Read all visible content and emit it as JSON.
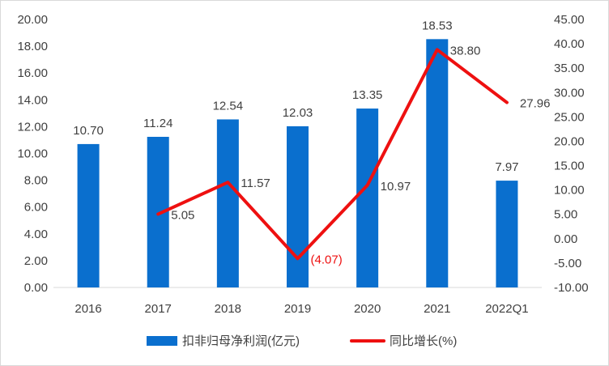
{
  "chart_data": {
    "type": "bar",
    "categories": [
      "2016",
      "2017",
      "2018",
      "2019",
      "2020",
      "2021",
      "2022Q1"
    ],
    "series": [
      {
        "name": "扣非归母净利润(亿元)",
        "type": "bar",
        "axis": "left",
        "color": "#0a6fce",
        "values": [
          10.7,
          11.24,
          12.54,
          12.03,
          13.35,
          18.53,
          7.97
        ],
        "labels": [
          "10.70",
          "11.24",
          "12.54",
          "12.03",
          "13.35",
          "18.53",
          "7.97"
        ]
      },
      {
        "name": "同比增长(%)",
        "type": "line",
        "axis": "right",
        "color": "#ee1010",
        "values": [
          null,
          5.05,
          11.57,
          -4.07,
          10.97,
          38.8,
          27.96
        ],
        "labels": [
          "",
          "5.05",
          "11.57",
          "(4.07)",
          "10.97",
          "38.80",
          "27.96"
        ],
        "label_colors": [
          "",
          "#404040",
          "#404040",
          "#ee1010",
          "#404040",
          "#404040",
          "#404040"
        ]
      }
    ],
    "y_left": {
      "ylim": [
        0,
        20
      ],
      "ticks": [
        "0.00",
        "2.00",
        "4.00",
        "6.00",
        "8.00",
        "10.00",
        "12.00",
        "14.00",
        "16.00",
        "18.00",
        "20.00"
      ]
    },
    "y_right": {
      "ylim": [
        -10,
        45
      ],
      "ticks": [
        "-10.00",
        "-5.00",
        "0.00",
        "5.00",
        "10.00",
        "15.00",
        "20.00",
        "25.00",
        "30.00",
        "35.00",
        "40.00",
        "45.00"
      ]
    },
    "grid": false,
    "legend": "bottom",
    "title": "",
    "xlabel": "",
    "ylabel": ""
  }
}
